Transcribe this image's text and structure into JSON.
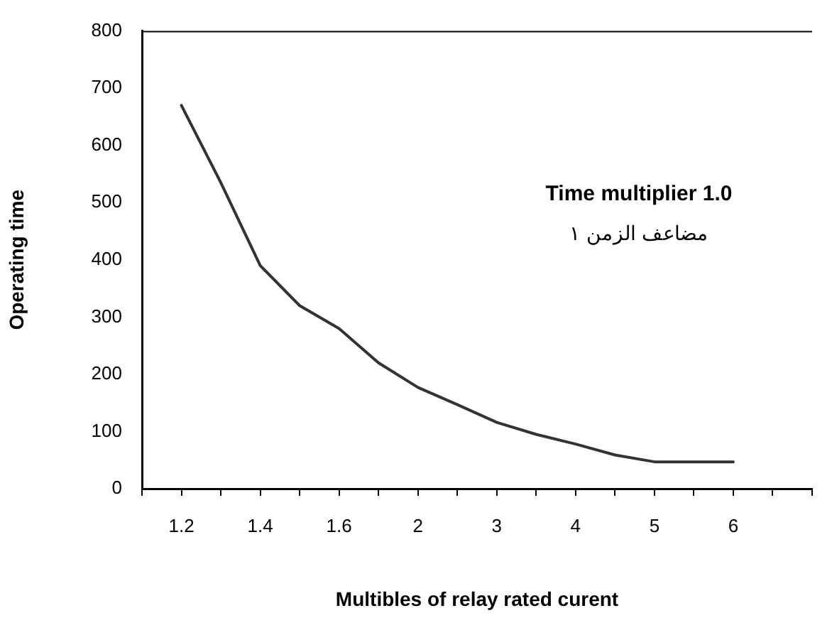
{
  "chart_data": {
    "type": "line",
    "xlabel": "Multibles of relay rated curent",
    "ylabel": "Operating time",
    "annotations": [
      "Time multiplier 1.0",
      "مضاعف الزمن ١"
    ],
    "categories": [
      null,
      "1.2",
      null,
      "1.4",
      null,
      "1.6",
      null,
      "2",
      null,
      "3",
      null,
      "4",
      null,
      "5",
      null,
      "6",
      null,
      null
    ],
    "series": [
      {
        "color": "#333333",
        "values": [
          null,
          670,
          535,
          390,
          320,
          280,
          220,
          177,
          147,
          116,
          95,
          78,
          59,
          47,
          47,
          47,
          null,
          null
        ]
      }
    ],
    "ylim": [
      0,
      800
    ],
    "yticks": [
      0,
      100,
      200,
      300,
      400,
      500,
      600,
      700,
      800
    ],
    "grid": false,
    "legend": false,
    "marker": "none",
    "line_style": "solid"
  }
}
